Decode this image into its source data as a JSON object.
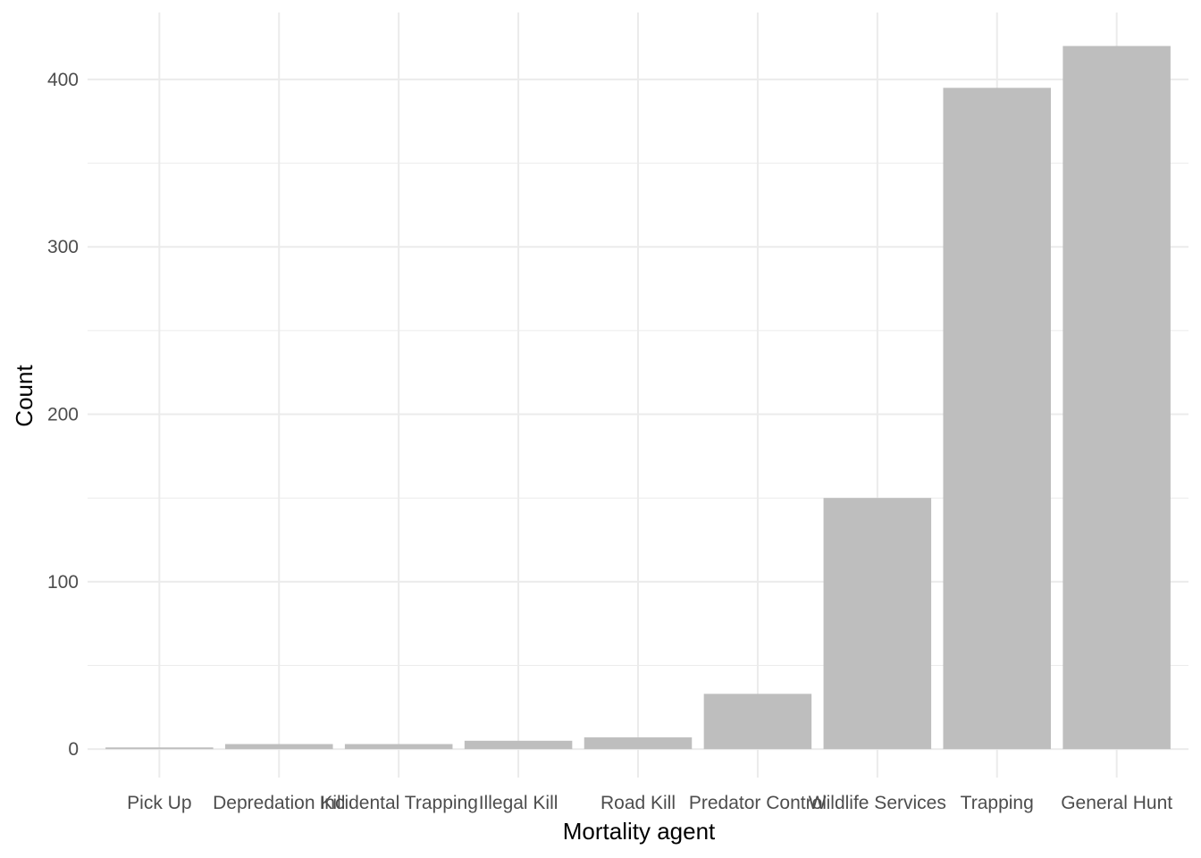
{
  "chart_data": {
    "type": "bar",
    "categories": [
      "Pick Up",
      "Depredation Kill",
      "Incidental Trapping",
      "Illegal Kill",
      "Road Kill",
      "Predator Control",
      "Wildlife Services",
      "Trapping",
      "General Hunt"
    ],
    "values": [
      1,
      3,
      3,
      5,
      7,
      33,
      150,
      395,
      420
    ],
    "xlabel": "Mortality agent",
    "ylabel": "Count",
    "ylim": [
      -17,
      440
    ],
    "yticks": [
      0,
      100,
      200,
      300,
      400
    ],
    "grid": true,
    "bar_color": "#bebebe",
    "grid_color": "#ebebeb"
  }
}
